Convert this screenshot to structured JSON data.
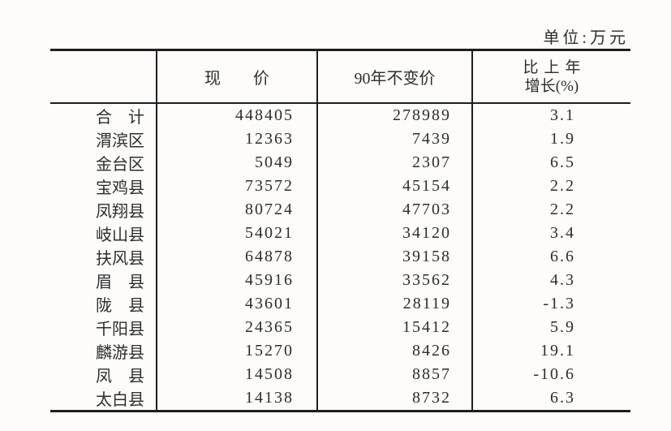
{
  "unit_label": "单位:万元",
  "table": {
    "headers": {
      "region": "",
      "current_price": "现　　价",
      "constant_price_90": "90年不变价",
      "growth_line1": "比上年",
      "growth_line2": "增长(%)"
    },
    "rows": [
      {
        "region": "合　计",
        "current_price": "448405",
        "constant_price_90": "278989",
        "growth_pct": "3.1"
      },
      {
        "region": "渭滨区",
        "current_price": "12363",
        "constant_price_90": "7439",
        "growth_pct": "1.9"
      },
      {
        "region": "金台区",
        "current_price": "5049",
        "constant_price_90": "2307",
        "growth_pct": "6.5"
      },
      {
        "region": "宝鸡县",
        "current_price": "73572",
        "constant_price_90": "45154",
        "growth_pct": "2.2"
      },
      {
        "region": "凤翔县",
        "current_price": "80724",
        "constant_price_90": "47703",
        "growth_pct": "2.2"
      },
      {
        "region": "岐山县",
        "current_price": "54021",
        "constant_price_90": "34120",
        "growth_pct": "3.4"
      },
      {
        "region": "扶风县",
        "current_price": "64878",
        "constant_price_90": "39158",
        "growth_pct": "6.6"
      },
      {
        "region": "眉　县",
        "current_price": "45916",
        "constant_price_90": "33562",
        "growth_pct": "4.3"
      },
      {
        "region": "陇　县",
        "current_price": "43601",
        "constant_price_90": "28119",
        "growth_pct": "-1.3"
      },
      {
        "region": "千阳县",
        "current_price": "24365",
        "constant_price_90": "15412",
        "growth_pct": "5.9"
      },
      {
        "region": "麟游县",
        "current_price": "15270",
        "constant_price_90": "8426",
        "growth_pct": "19.1"
      },
      {
        "region": "凤　县",
        "current_price": "14508",
        "constant_price_90": "8857",
        "growth_pct": "-10.6"
      },
      {
        "region": "太白县",
        "current_price": "14138",
        "constant_price_90": "8732",
        "growth_pct": "6.3"
      }
    ]
  },
  "colors": {
    "paper": "#fdfcfa",
    "text": "#2d2d2d",
    "line": "#1e1e1e"
  }
}
